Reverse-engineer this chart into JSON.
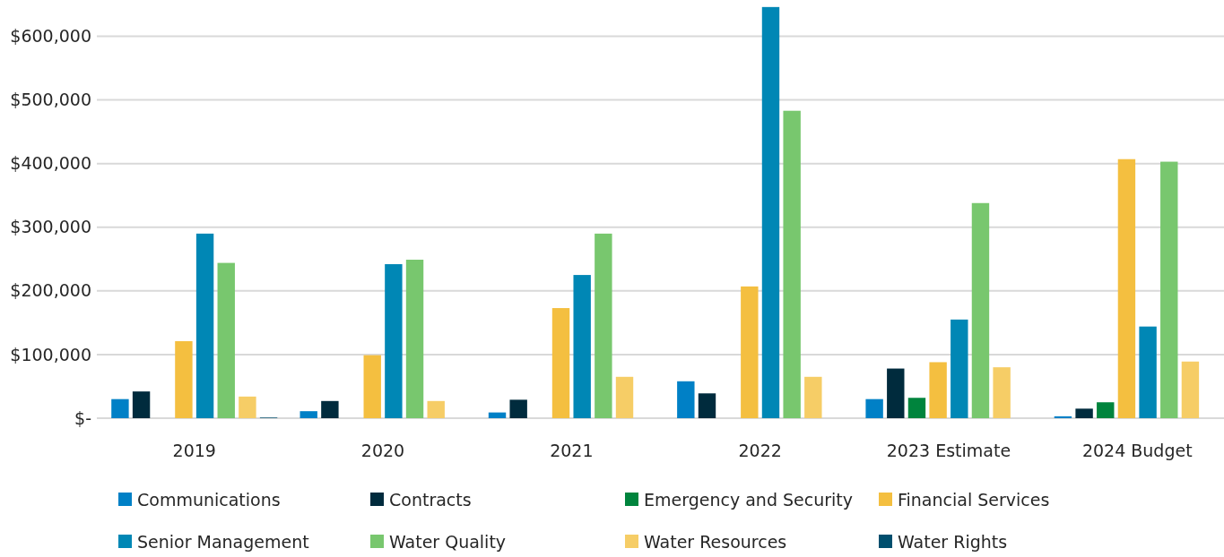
{
  "chart_data": {
    "type": "bar",
    "categories": [
      "2019",
      "2020",
      "2021",
      "2022",
      "2023 Estimate",
      "2024 Budget"
    ],
    "series": [
      {
        "name": "Communications",
        "color": "#0080c6",
        "values": [
          30000,
          11000,
          9000,
          58000,
          30000,
          3000
        ]
      },
      {
        "name": "Contracts",
        "color": "#002b3d",
        "values": [
          42000,
          27000,
          29000,
          39000,
          78000,
          15000
        ]
      },
      {
        "name": "Emergency and Security",
        "color": "#00843d",
        "values": [
          null,
          null,
          null,
          null,
          32000,
          25000
        ]
      },
      {
        "name": "Financial Services",
        "color": "#f4bf40",
        "values": [
          121000,
          99000,
          173000,
          207000,
          88000,
          407000
        ]
      },
      {
        "name": "Senior Management",
        "color": "#0087b5",
        "values": [
          290000,
          242000,
          225000,
          646000,
          155000,
          144000
        ]
      },
      {
        "name": "Water Quality",
        "color": "#78c76e",
        "values": [
          244000,
          249000,
          290000,
          483000,
          338000,
          403000
        ]
      },
      {
        "name": "Water Resources",
        "color": "#f6cd66",
        "values": [
          34000,
          27000,
          65000,
          65000,
          80000,
          89000
        ]
      },
      {
        "name": "Water Rights",
        "color": "#004f6e",
        "values": [
          1000,
          null,
          null,
          null,
          null,
          null
        ]
      }
    ],
    "ylim": [
      0,
      650000
    ],
    "yticks": [
      {
        "value": 0,
        "label": "$-"
      },
      {
        "value": 100000,
        "label": "$100,000"
      },
      {
        "value": 200000,
        "label": "$200,000"
      },
      {
        "value": 300000,
        "label": "$300,000"
      },
      {
        "value": 400000,
        "label": "$400,000"
      },
      {
        "value": 500000,
        "label": "$500,000"
      },
      {
        "value": 600000,
        "label": "$600,000"
      }
    ],
    "grid": "y",
    "legend": "bottom"
  }
}
